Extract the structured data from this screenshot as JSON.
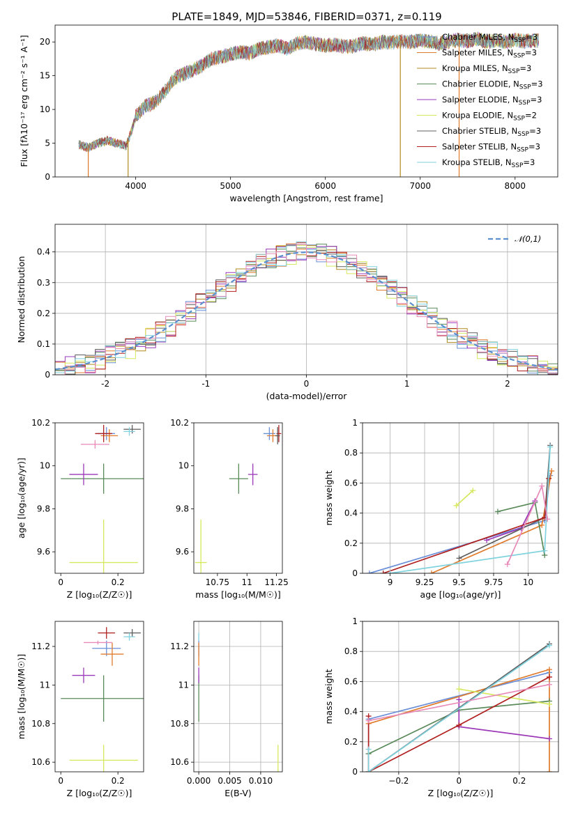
{
  "figure_title": "PLATE=1849, MJD=53846, FIBERID=0371, z=0.119",
  "colors": {
    "Chabrier MILES": "#6a8fd8",
    "Salpeter MILES": "#e07b2c",
    "Kroupa MILES": "#b08a1f",
    "Chabrier ELODIE": "#5a8a5a",
    "Salpeter ELODIE": "#9b38b8",
    "Kroupa ELODIE": "#d6e85e",
    "Chabrier STELIB": "#5e5e5e",
    "Salpeter STELIB": "#b01f1f",
    "Kroupa STELIB": "#7fd2de",
    "pink": "#e88ab8",
    "normal_curve": "#5a8fd0"
  },
  "chart_data": [
    {
      "type": "line",
      "title": "PLATE=1849, MJD=53846, FIBERID=0371, z=0.119",
      "xlabel": "wavelength [Angstrom, rest frame]",
      "ylabel": "Flux [fλ10⁻¹⁷ erg cm⁻² s⁻¹ A⁻¹]",
      "xlim": [
        3150,
        8450
      ],
      "ylim": [
        0,
        22.5
      ],
      "xticks": [
        4000,
        5000,
        6000,
        7000,
        8000
      ],
      "yticks": [
        0,
        5,
        10,
        15,
        20
      ],
      "legend_position": "right",
      "legend": [
        "Chabrier MILES, N_SSP=3",
        "Salpeter MILES, N_SSP=3",
        "Kroupa MILES, N_SSP=3",
        "Chabrier ELODIE, N_SSP=3",
        "Salpeter ELODIE, N_SSP=3",
        "Kroupa ELODIE, N_SSP=2",
        "Chabrier STELIB, N_SSP=3",
        "Salpeter STELIB, N_SSP=3",
        "Kroupa STELIB, N_SSP=3"
      ],
      "continuum": {
        "x": [
          3400,
          3500,
          3600,
          3700,
          3800,
          3900,
          3950,
          4000,
          4100,
          4200,
          4300,
          4400,
          4500,
          4600,
          4700,
          4800,
          4900,
          5000,
          5100,
          5200,
          5300,
          5400,
          5500,
          5600,
          5700,
          5800,
          5900,
          6000,
          6100,
          6200,
          6300,
          6400,
          6500,
          6600,
          6700,
          6800,
          6900,
          7000,
          7100,
          7200,
          7300,
          7400,
          7500,
          7600,
          7700,
          7800,
          7900,
          8000,
          8100,
          8200
        ],
        "y": [
          4.8,
          4.3,
          5.0,
          5.4,
          5.0,
          4.6,
          6.5,
          9.0,
          10.5,
          11.0,
          12.5,
          14.5,
          15.2,
          15.8,
          16.5,
          17.5,
          17.8,
          18.2,
          18.5,
          18.3,
          19.0,
          19.2,
          19.5,
          19.0,
          19.8,
          20.0,
          19.7,
          19.5,
          19.6,
          19.3,
          19.4,
          19.8,
          19.6,
          20.0,
          19.9,
          20.1,
          20.0,
          20.2,
          20.1,
          19.8,
          20.0,
          20.3,
          20.1,
          20.5,
          20.0,
          20.2,
          20.0,
          20.3,
          20.1,
          20.2
        ]
      }
    },
    {
      "type": "histogram",
      "xlabel": "(data-model)/error",
      "ylabel": "Normed distribution",
      "xlim": [
        -2.5,
        2.5
      ],
      "ylim": [
        0,
        0.49
      ],
      "xticks": [
        -2,
        -1,
        0,
        1,
        2
      ],
      "yticks": [
        0.0,
        0.1,
        0.2,
        0.3,
        0.4
      ],
      "grid": true,
      "legend": [
        "𝒩(0,1)"
      ],
      "legend_position": "top-right",
      "bin_width": 0.1
    },
    {
      "type": "scatter",
      "xlabel": "Z [log₁₀(Z/Z☉)]",
      "ylabel": "age  [log₁₀(age/yr)]",
      "xlim": [
        -0.02,
        0.29
      ],
      "ylim": [
        9.5,
        10.2
      ],
      "xticks": [
        0.0,
        0.2
      ],
      "yticks": [
        9.6,
        9.8,
        10.0,
        10.2
      ],
      "points": [
        {
          "model": "Chabrier MILES",
          "x": 0.16,
          "y": 10.15,
          "xerr": 0.03,
          "yerr": 0.03
        },
        {
          "model": "Salpeter MILES",
          "x": 0.17,
          "y": 10.14,
          "xerr": 0.03,
          "yerr": 0.03
        },
        {
          "model": "Chabrier ELODIE",
          "x": 0.15,
          "y": 9.94,
          "xerr": 0.15,
          "yerr": 0.07
        },
        {
          "model": "Salpeter ELODIE",
          "x": 0.08,
          "y": 9.96,
          "xerr": 0.05,
          "yerr": 0.05
        },
        {
          "model": "Kroupa ELODIE",
          "x": 0.15,
          "y": 9.55,
          "xerr": 0.12,
          "yerr": 0.2
        },
        {
          "model": "Chabrier STELIB",
          "x": 0.25,
          "y": 10.17,
          "xerr": 0.03,
          "yerr": 0.02
        },
        {
          "model": "Salpeter STELIB",
          "x": 0.15,
          "y": 10.15,
          "xerr": 0.03,
          "yerr": 0.04
        },
        {
          "model": "Kroupa STELIB",
          "x": 0.24,
          "y": 10.16,
          "xerr": 0.02,
          "yerr": 0.02
        },
        {
          "model": "pink",
          "x": 0.12,
          "y": 10.1,
          "xerr": 0.05,
          "yerr": 0.02
        }
      ]
    },
    {
      "type": "scatter",
      "xlabel": "mass [log₁₀(M/M☉)]",
      "ylabel": "",
      "xlim": [
        10.55,
        11.3
      ],
      "ylim": [
        9.5,
        10.2
      ],
      "xticks": [
        10.75,
        11.0,
        11.25
      ],
      "yticks": [
        9.6,
        9.8,
        10.0,
        10.2
      ],
      "points": [
        {
          "model": "Chabrier MILES",
          "x": 11.19,
          "y": 10.15,
          "xerr": 0.05,
          "yerr": 0.03
        },
        {
          "model": "Salpeter MILES",
          "x": 11.22,
          "y": 10.14,
          "xerr": 0.05,
          "yerr": 0.03
        },
        {
          "model": "Chabrier ELODIE",
          "x": 10.93,
          "y": 9.94,
          "xerr": 0.08,
          "yerr": 0.07
        },
        {
          "model": "Salpeter ELODIE",
          "x": 11.05,
          "y": 9.96,
          "xerr": 0.04,
          "yerr": 0.05
        },
        {
          "model": "Kroupa ELODIE",
          "x": 10.61,
          "y": 9.55,
          "xerr": 0.05,
          "yerr": 0.2
        },
        {
          "model": "Salpeter STELIB",
          "x": 11.27,
          "y": 10.15,
          "xerr": 0.02,
          "yerr": 0.04
        },
        {
          "model": "Chabrier STELIB",
          "x": 11.26,
          "y": 10.14,
          "xerr": 0.02,
          "yerr": 0.04
        }
      ]
    },
    {
      "type": "line",
      "xlabel": "age  [log₁₀(age/yr)]",
      "ylabel": "mass weight",
      "xlim": [
        8.8,
        10.22
      ],
      "ylim": [
        0,
        1.0
      ],
      "xticks": [
        9.0,
        9.25,
        9.5,
        9.75,
        10.0
      ],
      "yticks": [
        0.0,
        0.2,
        0.4,
        0.6,
        0.8,
        1.0
      ],
      "grid": true,
      "series": [
        {
          "model": "Chabrier MILES",
          "x": [
            8.85,
            10.12,
            10.16
          ],
          "y": [
            0.0,
            0.35,
            0.65
          ]
        },
        {
          "model": "Salpeter MILES",
          "x": [
            9.3,
            10.1,
            10.17
          ],
          "y": [
            0.0,
            0.32,
            0.68
          ]
        },
        {
          "model": "Chabrier ELODIE",
          "x": [
            9.78,
            10.05,
            10.12
          ],
          "y": [
            0.41,
            0.47,
            0.12
          ]
        },
        {
          "model": "Salpeter ELODIE",
          "x": [
            9.7,
            9.95,
            10.05
          ],
          "y": [
            0.22,
            0.3,
            0.48
          ]
        },
        {
          "model": "Kroupa ELODIE",
          "x": [
            9.48,
            9.6
          ],
          "y": [
            0.45,
            0.55
          ]
        },
        {
          "model": "Chabrier STELIB",
          "x": [
            9.5,
            10.12,
            10.16
          ],
          "y": [
            0.1,
            0.37,
            0.85
          ]
        },
        {
          "model": "Salpeter STELIB",
          "x": [
            8.95,
            10.12,
            10.15
          ],
          "y": [
            0.0,
            0.37,
            0.63
          ]
        },
        {
          "model": "Kroupa STELIB",
          "x": [
            9.0,
            10.12,
            10.16
          ],
          "y": [
            0.0,
            0.15,
            0.84
          ]
        },
        {
          "model": "pink",
          "x": [
            9.85,
            10.1,
            10.14
          ],
          "y": [
            0.06,
            0.58,
            0.36
          ]
        }
      ]
    },
    {
      "type": "scatter",
      "xlabel": "Z [log₁₀(Z/Z☉)]",
      "ylabel": "mass [log₁₀(M/M☉)]",
      "xlim": [
        -0.02,
        0.29
      ],
      "ylim": [
        10.55,
        11.33
      ],
      "xticks": [
        0.0,
        0.2
      ],
      "yticks": [
        10.6,
        10.8,
        11.0,
        11.2
      ],
      "points": [
        {
          "model": "Chabrier MILES",
          "x": 0.16,
          "y": 11.19,
          "xerr": 0.05,
          "yerr": 0.04
        },
        {
          "model": "Salpeter MILES",
          "x": 0.18,
          "y": 11.16,
          "xerr": 0.04,
          "yerr": 0.06
        },
        {
          "model": "Chabrier ELODIE",
          "x": 0.15,
          "y": 10.93,
          "xerr": 0.15,
          "yerr": 0.12
        },
        {
          "model": "Salpeter ELODIE",
          "x": 0.08,
          "y": 11.05,
          "xerr": 0.04,
          "yerr": 0.04
        },
        {
          "model": "Kroupa ELODIE",
          "x": 0.15,
          "y": 10.61,
          "xerr": 0.12,
          "yerr": 0.08
        },
        {
          "model": "Chabrier STELIB",
          "x": 0.25,
          "y": 11.27,
          "xerr": 0.03,
          "yerr": 0.02
        },
        {
          "model": "Salpeter STELIB",
          "x": 0.16,
          "y": 11.27,
          "xerr": 0.03,
          "yerr": 0.03
        },
        {
          "model": "Kroupa STELIB",
          "x": 0.24,
          "y": 11.25,
          "xerr": 0.02,
          "yerr": 0.02
        },
        {
          "model": "pink",
          "x": 0.13,
          "y": 11.22,
          "xerr": 0.05,
          "yerr": 0.01
        }
      ]
    },
    {
      "type": "scatter",
      "xlabel": "E(B-V)",
      "ylabel": "",
      "xlim": [
        -0.0008,
        0.0135
      ],
      "ylim": [
        10.55,
        11.33
      ],
      "xticks": [
        0.0,
        0.005,
        0.01
      ],
      "xticklabels": [
        "0.000",
        "0.005",
        "0.010"
      ],
      "yticks": [
        10.6,
        10.8,
        11.0,
        11.2
      ],
      "grid": true,
      "points": [
        {
          "model": "Chabrier MILES",
          "x": 0.0,
          "y": 11.19,
          "xerr": 0.0,
          "yerr": 0.04
        },
        {
          "model": "Salpeter MILES",
          "x": 0.0,
          "y": 11.16,
          "xerr": 0.0,
          "yerr": 0.06
        },
        {
          "model": "Chabrier ELODIE",
          "x": 0.0,
          "y": 10.93,
          "xerr": 0.0,
          "yerr": 0.12
        },
        {
          "model": "Salpeter ELODIE",
          "x": 0.0,
          "y": 11.05,
          "xerr": 0.0,
          "yerr": 0.04
        },
        {
          "model": "Kroupa ELODIE",
          "x": 0.0128,
          "y": 10.61,
          "xerr": 0.0,
          "yerr": 0.08
        },
        {
          "model": "Kroupa STELIB",
          "x": 0.0,
          "y": 11.25,
          "xerr": 0.0,
          "yerr": 0.02
        }
      ]
    },
    {
      "type": "line",
      "xlabel": "Z [log₁₀(Z/Z☉)]",
      "ylabel": "mass weight",
      "xlim": [
        -0.32,
        0.33
      ],
      "ylim": [
        0,
        1.0
      ],
      "xticks": [
        -0.2,
        0.0,
        0.2
      ],
      "yticks": [
        0.0,
        0.2,
        0.4,
        0.6,
        0.8,
        1.0
      ],
      "grid": true,
      "series": [
        {
          "model": "Chabrier MILES",
          "x": [
            -0.3,
            0.3
          ],
          "y": [
            0.35,
            0.66
          ]
        },
        {
          "model": "Salpeter MILES",
          "x": [
            -0.3,
            0.3,
            0.3
          ],
          "y": [
            0.32,
            0.68,
            0.0
          ]
        },
        {
          "model": "Chabrier ELODIE",
          "x": [
            -0.3,
            0.0,
            0.3
          ],
          "y": [
            0.12,
            0.41,
            0.47
          ]
        },
        {
          "model": "Salpeter ELODIE",
          "x": [
            0.0,
            0.0,
            0.3
          ],
          "y": [
            0.48,
            0.3,
            0.22
          ]
        },
        {
          "model": "Kroupa ELODIE",
          "x": [
            0.0,
            0.3
          ],
          "y": [
            0.55,
            0.45
          ]
        },
        {
          "model": "Chabrier STELIB",
          "x": [
            -0.3,
            0.3
          ],
          "y": [
            0.0,
            0.85
          ]
        },
        {
          "model": "Salpeter STELIB",
          "x": [
            -0.3,
            -0.3,
            0.0,
            0.3
          ],
          "y": [
            0.37,
            0.0,
            0.31,
            0.63
          ]
        },
        {
          "model": "Kroupa STELIB",
          "x": [
            -0.3,
            -0.3,
            0.3
          ],
          "y": [
            0.15,
            0.0,
            0.84
          ]
        },
        {
          "model": "pink",
          "x": [
            -0.3,
            0.3
          ],
          "y": [
            0.34,
            0.58
          ]
        }
      ]
    }
  ]
}
